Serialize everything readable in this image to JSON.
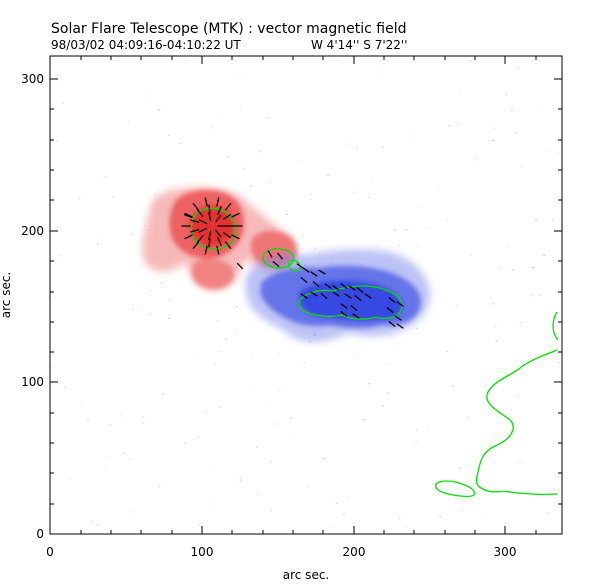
{
  "header": {
    "title": "Solar Flare Telescope (MTK) : vector magnetic field",
    "datetime": "98/03/02  04:09:16-04:10:22 UT",
    "position": "W 4'14''  S 7'22''"
  },
  "x_axis": {
    "label": "arc sec.",
    "range": [
      0,
      338
    ],
    "ticks": [
      0,
      100,
      200,
      300
    ],
    "tick_labels": [
      "0",
      "100",
      "200",
      "300"
    ]
  },
  "y_axis": {
    "label": "arc sec.",
    "range": [
      0,
      318
    ],
    "ticks": [
      0,
      100,
      200,
      300
    ],
    "tick_labels": [
      "0",
      "100",
      "200",
      "300"
    ]
  },
  "colors": {
    "background": "#ffffff",
    "positive_polarity": "#e83a3a",
    "negative_polarity": "#3d4ee8",
    "contour": "#00e000",
    "vectors": "#000000",
    "noise": "#8f9bdc"
  }
}
